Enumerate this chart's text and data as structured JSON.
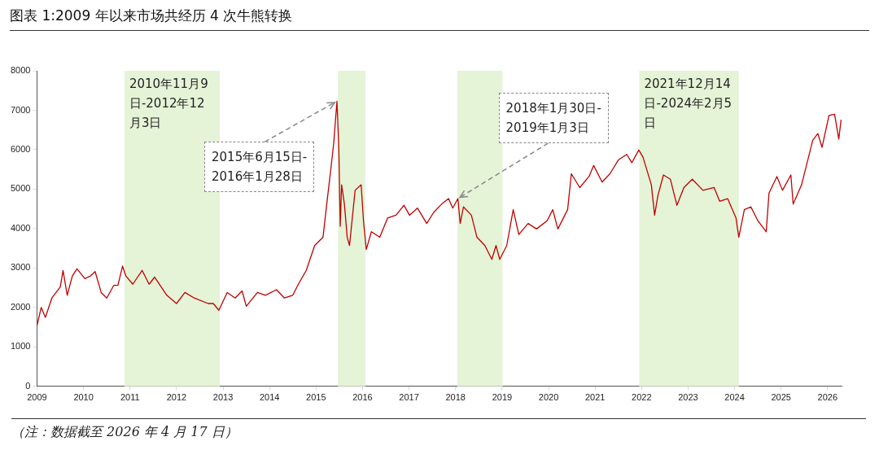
{
  "chart_data": {
    "type": "line",
    "title": "图表 1:2009 年以来市场共经历 4 次牛熊转换",
    "x": [
      2009.0,
      2009.09,
      2009.18,
      2009.32,
      2009.5,
      2009.56,
      2009.65,
      2009.76,
      2009.86,
      2010.03,
      2010.15,
      2010.25,
      2010.38,
      2010.5,
      2010.65,
      2010.74,
      2010.84,
      2010.91,
      2011.06,
      2011.26,
      2011.41,
      2011.53,
      2011.79,
      2012.0,
      2012.18,
      2012.38,
      2012.68,
      2012.79,
      2012.91,
      2013.09,
      2013.26,
      2013.41,
      2013.5,
      2013.74,
      2013.91,
      2014.15,
      2014.32,
      2014.5,
      2014.62,
      2014.79,
      2014.97,
      2015.15,
      2015.23,
      2015.32,
      2015.38,
      2015.45,
      2015.49,
      2015.52,
      2015.55,
      2015.61,
      2015.67,
      2015.72,
      2015.84,
      2015.97,
      2016.02,
      2016.08,
      2016.19,
      2016.37,
      2016.54,
      2016.72,
      2016.89,
      2017.01,
      2017.18,
      2017.38,
      2017.53,
      2017.7,
      2017.85,
      2017.94,
      2018.05,
      2018.1,
      2018.17,
      2018.34,
      2018.46,
      2018.63,
      2018.78,
      2018.87,
      2018.95,
      2019.1,
      2019.24,
      2019.36,
      2019.56,
      2019.74,
      2019.97,
      2020.09,
      2020.2,
      2020.41,
      2020.49,
      2020.67,
      2020.87,
      2020.97,
      2021.15,
      2021.32,
      2021.5,
      2021.68,
      2021.79,
      2021.94,
      2022.03,
      2022.12,
      2022.21,
      2022.28,
      2022.35,
      2022.47,
      2022.62,
      2022.76,
      2022.91,
      2023.09,
      2023.32,
      2023.56,
      2023.68,
      2023.85,
      2024.03,
      2024.09,
      2024.21,
      2024.35,
      2024.5,
      2024.68,
      2024.74,
      2024.91,
      2025.03,
      2025.21,
      2025.26,
      2025.44,
      2025.56,
      2025.68,
      2025.79,
      2025.88,
      2026.03,
      2026.15,
      2026.24,
      2026.29
    ],
    "series": [
      {
        "color": "#c00000",
        "values": [
          1540,
          2000,
          1750,
          2240,
          2520,
          2940,
          2310,
          2800,
          2980,
          2730,
          2800,
          2910,
          2380,
          2240,
          2560,
          2560,
          3050,
          2800,
          2590,
          2940,
          2590,
          2770,
          2310,
          2100,
          2380,
          2240,
          2100,
          2100,
          1930,
          2380,
          2240,
          2420,
          2030,
          2380,
          2310,
          2450,
          2240,
          2310,
          2590,
          2940,
          3570,
          3780,
          4620,
          5530,
          6170,
          7230,
          6020,
          4060,
          5110,
          4620,
          3780,
          3570,
          4970,
          5110,
          4200,
          3470,
          3920,
          3780,
          4270,
          4340,
          4590,
          4340,
          4520,
          4130,
          4410,
          4620,
          4760,
          4520,
          4760,
          4130,
          4550,
          4340,
          3780,
          3570,
          3220,
          3570,
          3220,
          3570,
          4480,
          3850,
          4130,
          3990,
          4200,
          4480,
          3990,
          4480,
          5390,
          5040,
          5320,
          5600,
          5180,
          5390,
          5740,
          5880,
          5670,
          5990,
          5810,
          5460,
          5110,
          4340,
          4830,
          5360,
          5250,
          4590,
          5040,
          5250,
          4970,
          5040,
          4690,
          4760,
          4270,
          3780,
          4480,
          4550,
          4200,
          3920,
          4900,
          5320,
          4970,
          5360,
          4620,
          5110,
          5670,
          6240,
          6410,
          6060,
          6870,
          6900,
          6270,
          6760
        ]
      }
    ],
    "xlim": [
      2009,
      2026.3
    ],
    "xticks": [
      2009,
      2010,
      2011,
      2012,
      2013,
      2014,
      2015,
      2016,
      2017,
      2018,
      2019,
      2020,
      2021,
      2022,
      2023,
      2024,
      2025,
      2026
    ],
    "ylim": [
      0,
      8000
    ],
    "yticks": [
      0,
      1000,
      2000,
      3000,
      4000,
      5000,
      6000,
      7000,
      8000
    ],
    "grid": false,
    "legend": false,
    "marker": "none",
    "line_style": "solid",
    "bands": [
      {
        "axis": "x",
        "from": 2010.88,
        "to": 2012.93,
        "label": "2010年11月9日-2012年12月3日",
        "color": "#e5f3d7"
      },
      {
        "axis": "x",
        "from": 2015.47,
        "to": 2016.06,
        "color": "#e5f3d7"
      },
      {
        "axis": "x",
        "from": 2018.04,
        "to": 2019.01,
        "color": "#e5f3d7"
      },
      {
        "axis": "x",
        "from": 2021.95,
        "to": 2024.09,
        "label": "2021年12月14日-2024年2月5日",
        "color": "#e5f3d7"
      }
    ],
    "annotations": [
      {
        "text": "2015年6月15日-2016年1月28日",
        "x": 2015.45,
        "y": 7230
      },
      {
        "text": "2018年1月30日-2019年1月3日",
        "x": 2018.05,
        "y": 4760
      },
      "（注：数据截至 2026 年 4 月 17 日）"
    ]
  }
}
